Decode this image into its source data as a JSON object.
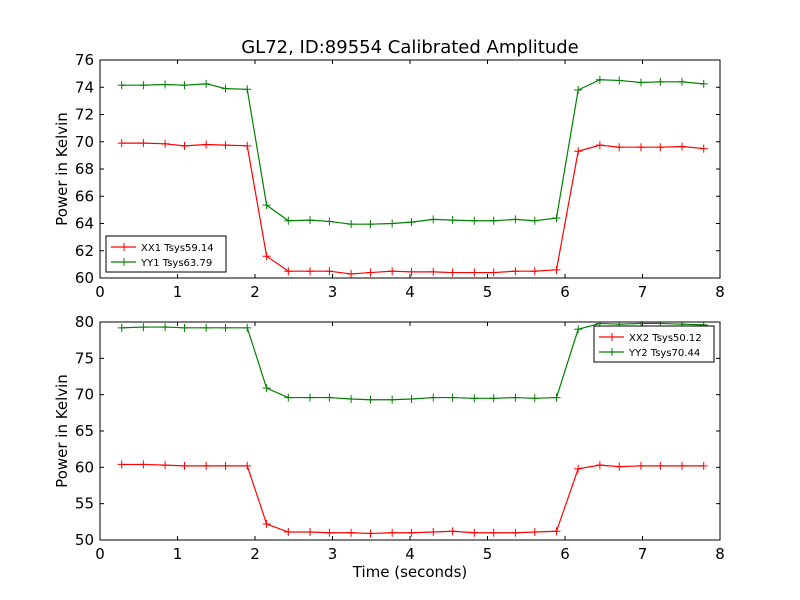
{
  "figure": {
    "title": "GL72, ID:89554 Calibrated Amplitude",
    "xlabel": "Time (seconds)"
  },
  "chart_data": [
    {
      "type": "line",
      "title": "GL72, ID:89554 Calibrated Amplitude",
      "xlabel": "",
      "ylabel": "Power in Kelvin",
      "xlim": [
        0,
        8
      ],
      "ylim": [
        60,
        76
      ],
      "xticks": [
        "0",
        "1",
        "2",
        "3",
        "4",
        "5",
        "6",
        "7",
        "8"
      ],
      "yticks": [
        "60",
        "62",
        "64",
        "66",
        "68",
        "70",
        "72",
        "74",
        "76"
      ],
      "legend_position": "lower-left",
      "grid": false,
      "x": [
        0.28,
        0.56,
        0.84,
        1.09,
        1.37,
        1.62,
        1.9,
        2.15,
        2.43,
        2.71,
        2.96,
        3.24,
        3.49,
        3.77,
        4.02,
        4.3,
        4.55,
        4.83,
        5.08,
        5.36,
        5.61,
        5.89,
        6.17,
        6.45,
        6.7,
        6.98,
        7.23,
        7.51,
        7.79
      ],
      "series": [
        {
          "name": "XX1 Tsys59.14",
          "color": "#ff0000",
          "values": [
            69.9,
            69.9,
            69.85,
            69.7,
            69.8,
            69.75,
            69.7,
            61.6,
            60.5,
            60.5,
            60.5,
            60.3,
            60.4,
            60.5,
            60.45,
            60.45,
            60.4,
            60.4,
            60.4,
            60.5,
            60.5,
            60.6,
            69.3,
            69.75,
            69.6,
            69.6,
            69.6,
            69.65,
            69.5
          ]
        },
        {
          "name": "YY1 Tsys63.79",
          "color": "#008000",
          "values": [
            74.15,
            74.15,
            74.2,
            74.15,
            74.25,
            73.9,
            73.85,
            65.35,
            64.2,
            64.25,
            64.15,
            63.95,
            63.95,
            64.0,
            64.1,
            64.3,
            64.25,
            64.2,
            64.2,
            64.3,
            64.2,
            64.4,
            73.8,
            74.55,
            74.5,
            74.35,
            74.4,
            74.4,
            74.25
          ]
        }
      ]
    },
    {
      "type": "line",
      "title": "",
      "xlabel": "Time (seconds)",
      "ylabel": "Power in Kelvin",
      "xlim": [
        0,
        8
      ],
      "ylim": [
        50,
        80
      ],
      "xticks": [
        "0",
        "1",
        "2",
        "3",
        "4",
        "5",
        "6",
        "7",
        "8"
      ],
      "yticks": [
        "50",
        "55",
        "60",
        "65",
        "70",
        "75",
        "80"
      ],
      "legend_position": "upper-right",
      "grid": false,
      "x": [
        0.28,
        0.56,
        0.84,
        1.09,
        1.37,
        1.62,
        1.9,
        2.15,
        2.43,
        2.71,
        2.96,
        3.24,
        3.49,
        3.77,
        4.02,
        4.3,
        4.55,
        4.83,
        5.08,
        5.36,
        5.61,
        5.89,
        6.17,
        6.45,
        6.7,
        6.98,
        7.23,
        7.51,
        7.79
      ],
      "series": [
        {
          "name": "XX2 Tsys50.12",
          "color": "#ff0000",
          "values": [
            60.4,
            60.4,
            60.3,
            60.2,
            60.2,
            60.2,
            60.2,
            52.2,
            51.1,
            51.1,
            51.0,
            51.0,
            50.9,
            51.0,
            51.0,
            51.1,
            51.2,
            51.0,
            51.0,
            51.0,
            51.1,
            51.2,
            59.8,
            60.3,
            60.1,
            60.2,
            60.2,
            60.2,
            60.2
          ]
        },
        {
          "name": "YY2 Tsys70.44",
          "color": "#008000",
          "values": [
            79.2,
            79.3,
            79.3,
            79.2,
            79.2,
            79.2,
            79.2,
            70.9,
            69.6,
            69.6,
            69.6,
            69.4,
            69.3,
            69.3,
            69.4,
            69.6,
            69.6,
            69.5,
            69.5,
            69.6,
            69.5,
            69.6,
            79.0,
            79.8,
            79.7,
            79.8,
            79.8,
            79.7,
            79.6
          ]
        }
      ]
    }
  ]
}
